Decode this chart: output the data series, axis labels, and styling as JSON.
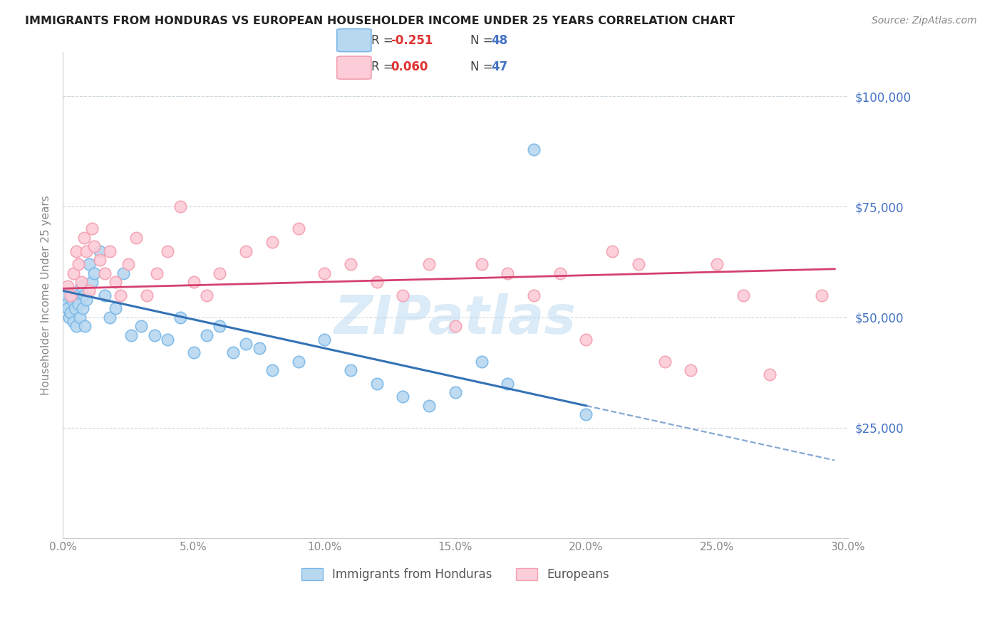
{
  "title": "IMMIGRANTS FROM HONDURAS VS EUROPEAN HOUSEHOLDER INCOME UNDER 25 YEARS CORRELATION CHART",
  "source": "Source: ZipAtlas.com",
  "ylabel": "Householder Income Under 25 years",
  "ytick_vals": [
    25000,
    50000,
    75000,
    100000
  ],
  "ytick_labels": [
    "$25,000",
    "$50,000",
    "$75,000",
    "$100,000"
  ],
  "xlim": [
    0.0,
    30.0
  ],
  "ylim": [
    0,
    110000
  ],
  "legend_r_blue": "-0.251",
  "legend_n_blue": "48",
  "legend_r_pink": "0.060",
  "legend_n_pink": "47",
  "legend_label_blue": "Immigrants from Honduras",
  "legend_label_pink": "Europeans",
  "watermark": "ZIPatlas",
  "blue_x": [
    0.1,
    0.15,
    0.2,
    0.25,
    0.3,
    0.35,
    0.4,
    0.45,
    0.5,
    0.55,
    0.6,
    0.65,
    0.7,
    0.75,
    0.8,
    0.85,
    0.9,
    1.0,
    1.1,
    1.2,
    1.4,
    1.6,
    1.8,
    2.0,
    2.3,
    2.6,
    3.0,
    3.5,
    4.0,
    4.5,
    5.0,
    5.5,
    6.0,
    6.5,
    7.0,
    7.5,
    8.0,
    9.0,
    10.0,
    11.0,
    12.0,
    13.0,
    14.0,
    15.0,
    16.0,
    18.0,
    20.0,
    17.0
  ],
  "blue_y": [
    55000,
    53000,
    52000,
    50000,
    51000,
    54000,
    49000,
    52000,
    48000,
    55000,
    53000,
    50000,
    57000,
    52000,
    55000,
    48000,
    54000,
    62000,
    58000,
    60000,
    65000,
    55000,
    50000,
    52000,
    60000,
    46000,
    48000,
    46000,
    45000,
    50000,
    42000,
    46000,
    48000,
    42000,
    44000,
    43000,
    38000,
    40000,
    45000,
    38000,
    35000,
    32000,
    30000,
    33000,
    40000,
    88000,
    28000,
    35000
  ],
  "pink_x": [
    0.2,
    0.3,
    0.4,
    0.5,
    0.6,
    0.7,
    0.8,
    0.9,
    1.0,
    1.1,
    1.2,
    1.4,
    1.6,
    1.8,
    2.0,
    2.2,
    2.5,
    2.8,
    3.2,
    3.6,
    4.0,
    4.5,
    5.0,
    5.5,
    6.0,
    7.0,
    8.0,
    9.0,
    10.0,
    11.0,
    12.0,
    13.0,
    14.0,
    15.0,
    16.0,
    17.0,
    18.0,
    19.0,
    20.0,
    21.0,
    22.0,
    23.0,
    25.0,
    26.0,
    27.0,
    29.0,
    24.0
  ],
  "pink_y": [
    57000,
    55000,
    60000,
    65000,
    62000,
    58000,
    68000,
    65000,
    56000,
    70000,
    66000,
    63000,
    60000,
    65000,
    58000,
    55000,
    62000,
    68000,
    55000,
    60000,
    65000,
    75000,
    58000,
    55000,
    60000,
    65000,
    67000,
    70000,
    60000,
    62000,
    58000,
    55000,
    62000,
    48000,
    62000,
    60000,
    55000,
    60000,
    45000,
    65000,
    62000,
    40000,
    62000,
    55000,
    37000,
    55000,
    38000
  ],
  "blue_color": "#7ab8e8",
  "pink_color": "#f4a0b0",
  "blue_fill": "#b8d8f0",
  "pink_fill": "#fcccd8",
  "blue_line_color": "#3472b5",
  "pink_line_color": "#d44070",
  "grid_color": "#d0d8e0",
  "background_color": "#ffffff",
  "title_color": "#222222",
  "right_label_color": "#4472c4",
  "source_color": "#888888",
  "axis_color": "#888888",
  "blue_solid_end": 20.0,
  "blue_line_end": 29.5,
  "pink_line_end": 29.5
}
